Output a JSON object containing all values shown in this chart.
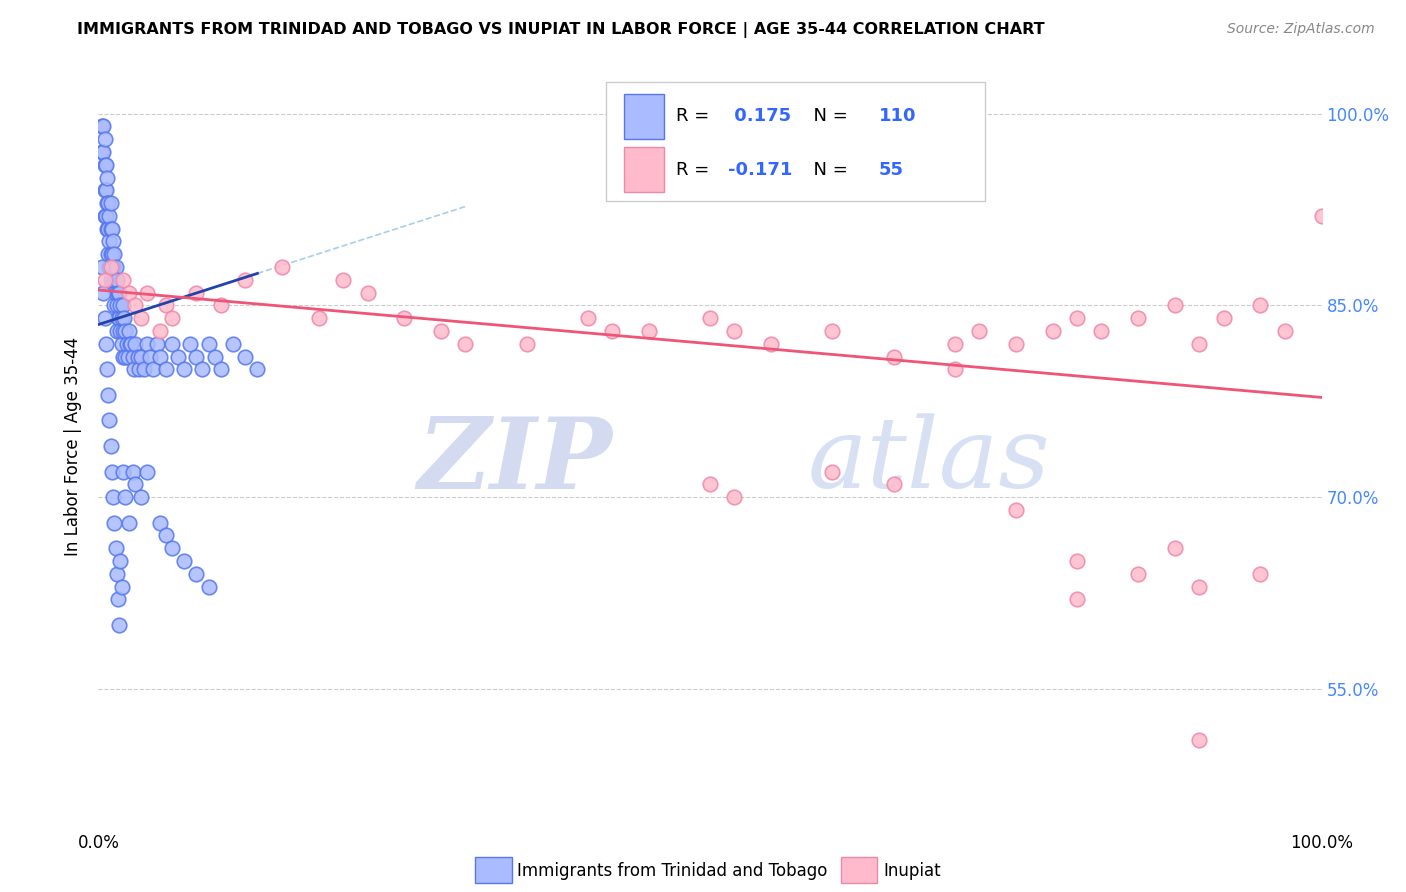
{
  "title": "IMMIGRANTS FROM TRINIDAD AND TOBAGO VS INUPIAT IN LABOR FORCE | AGE 35-44 CORRELATION CHART",
  "source": "Source: ZipAtlas.com",
  "ylabel": "In Labor Force | Age 35-44",
  "xlim": [
    0.0,
    1.0
  ],
  "ylim": [
    0.44,
    1.04
  ],
  "ytick_values": [
    0.55,
    0.7,
    0.85,
    1.0
  ],
  "blue_R": 0.175,
  "blue_N": 110,
  "pink_R": -0.171,
  "pink_N": 55,
  "blue_color": "#aabbff",
  "blue_edge_color": "#5577ee",
  "pink_color": "#ffbbcc",
  "pink_edge_color": "#ee88aa",
  "blue_line_color": "#2244aa",
  "pink_line_color": "#ee5577",
  "dash_color": "#aaccee",
  "grid_color": "#cccccc",
  "legend1_label": "Immigrants from Trinidad and Tobago",
  "legend2_label": "Inupiat",
  "watermark_zip": "ZIP",
  "watermark_atlas": "atlas",
  "blue_scatter_x": [
    0.003,
    0.003,
    0.004,
    0.004,
    0.005,
    0.005,
    0.005,
    0.005,
    0.006,
    0.006,
    0.006,
    0.007,
    0.007,
    0.007,
    0.008,
    0.008,
    0.008,
    0.009,
    0.009,
    0.009,
    0.01,
    0.01,
    0.01,
    0.01,
    0.011,
    0.011,
    0.012,
    0.012,
    0.013,
    0.013,
    0.013,
    0.014,
    0.014,
    0.015,
    0.015,
    0.015,
    0.016,
    0.016,
    0.017,
    0.017,
    0.018,
    0.018,
    0.019,
    0.019,
    0.02,
    0.02,
    0.02,
    0.021,
    0.022,
    0.022,
    0.023,
    0.024,
    0.025,
    0.026,
    0.027,
    0.028,
    0.029,
    0.03,
    0.032,
    0.033,
    0.035,
    0.037,
    0.04,
    0.042,
    0.045,
    0.048,
    0.05,
    0.055,
    0.06,
    0.065,
    0.07,
    0.075,
    0.08,
    0.085,
    0.09,
    0.095,
    0.1,
    0.11,
    0.12,
    0.13,
    0.003,
    0.004,
    0.005,
    0.006,
    0.007,
    0.008,
    0.009,
    0.01,
    0.011,
    0.012,
    0.013,
    0.014,
    0.015,
    0.016,
    0.017,
    0.018,
    0.019,
    0.02,
    0.022,
    0.025,
    0.028,
    0.03,
    0.035,
    0.04,
    0.05,
    0.055,
    0.06,
    0.07,
    0.08,
    0.09
  ],
  "blue_scatter_y": [
    0.99,
    0.97,
    0.99,
    0.97,
    0.98,
    0.96,
    0.94,
    0.92,
    0.96,
    0.94,
    0.92,
    0.95,
    0.93,
    0.91,
    0.93,
    0.91,
    0.89,
    0.92,
    0.9,
    0.88,
    0.93,
    0.91,
    0.89,
    0.87,
    0.91,
    0.89,
    0.9,
    0.88,
    0.89,
    0.87,
    0.85,
    0.88,
    0.86,
    0.87,
    0.85,
    0.83,
    0.86,
    0.84,
    0.86,
    0.84,
    0.85,
    0.83,
    0.84,
    0.82,
    0.85,
    0.83,
    0.81,
    0.84,
    0.83,
    0.81,
    0.82,
    0.81,
    0.83,
    0.82,
    0.82,
    0.81,
    0.8,
    0.82,
    0.81,
    0.8,
    0.81,
    0.8,
    0.82,
    0.81,
    0.8,
    0.82,
    0.81,
    0.8,
    0.82,
    0.81,
    0.8,
    0.82,
    0.81,
    0.8,
    0.82,
    0.81,
    0.8,
    0.82,
    0.81,
    0.8,
    0.88,
    0.86,
    0.84,
    0.82,
    0.8,
    0.78,
    0.76,
    0.74,
    0.72,
    0.7,
    0.68,
    0.66,
    0.64,
    0.62,
    0.6,
    0.65,
    0.63,
    0.72,
    0.7,
    0.68,
    0.72,
    0.71,
    0.7,
    0.72,
    0.68,
    0.67,
    0.66,
    0.65,
    0.64,
    0.63
  ],
  "pink_scatter_x": [
    0.005,
    0.01,
    0.02,
    0.025,
    0.03,
    0.035,
    0.04,
    0.05,
    0.055,
    0.06,
    0.08,
    0.1,
    0.12,
    0.15,
    0.18,
    0.2,
    0.22,
    0.25,
    0.28,
    0.3,
    0.35,
    0.4,
    0.42,
    0.45,
    0.5,
    0.52,
    0.55,
    0.6,
    0.65,
    0.7,
    0.72,
    0.75,
    0.78,
    0.8,
    0.82,
    0.85,
    0.88,
    0.9,
    0.92,
    0.95,
    0.97,
    1.0,
    0.5,
    0.52,
    0.6,
    0.65,
    0.7,
    0.75,
    0.8,
    0.85,
    0.88,
    0.9,
    0.95,
    0.8,
    0.9
  ],
  "pink_scatter_y": [
    0.87,
    0.88,
    0.87,
    0.86,
    0.85,
    0.84,
    0.86,
    0.83,
    0.85,
    0.84,
    0.86,
    0.85,
    0.87,
    0.88,
    0.84,
    0.87,
    0.86,
    0.84,
    0.83,
    0.82,
    0.82,
    0.84,
    0.83,
    0.83,
    0.84,
    0.83,
    0.82,
    0.83,
    0.81,
    0.82,
    0.83,
    0.82,
    0.83,
    0.84,
    0.83,
    0.84,
    0.85,
    0.82,
    0.84,
    0.85,
    0.83,
    0.92,
    0.71,
    0.7,
    0.72,
    0.71,
    0.8,
    0.69,
    0.65,
    0.64,
    0.66,
    0.63,
    0.64,
    0.62,
    0.51
  ],
  "blue_trend_x": [
    0.0,
    0.13
  ],
  "blue_trend_y": [
    0.835,
    0.875
  ],
  "pink_trend_x": [
    0.0,
    1.0
  ],
  "pink_trend_y": [
    0.862,
    0.778
  ]
}
